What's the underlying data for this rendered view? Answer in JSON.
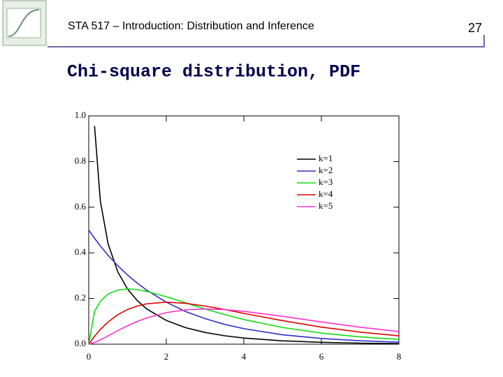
{
  "header": {
    "title": "STA 517 – Introduction: Distribution and Inference",
    "page": "27"
  },
  "chart_data": {
    "type": "line",
    "title": "Chi-square distribution, PDF",
    "x": [
      0,
      0.15,
      0.3,
      0.5,
      0.75,
      1,
      1.25,
      1.5,
      2,
      2.5,
      3,
      3.5,
      4,
      5,
      6,
      7,
      8
    ],
    "series": [
      {
        "name": "k=1",
        "color": "#000000",
        "values": [
          null,
          0.956,
          0.627,
          0.439,
          0.317,
          0.242,
          0.191,
          0.154,
          0.104,
          0.0723,
          0.0514,
          0.0371,
          0.027,
          0.0146,
          0.0081,
          0.0046,
          0.0026
        ]
      },
      {
        "name": "k=2",
        "color": "#2f2fc8",
        "values": [
          0.5,
          0.464,
          0.43,
          0.389,
          0.344,
          0.303,
          0.268,
          0.236,
          0.184,
          0.143,
          0.112,
          0.087,
          0.068,
          0.041,
          0.025,
          0.015,
          0.009
        ]
      },
      {
        "name": "k=3",
        "color": "#10dd10",
        "values": [
          0,
          0.143,
          0.188,
          0.22,
          0.237,
          0.242,
          0.239,
          0.231,
          0.208,
          0.181,
          0.154,
          0.13,
          0.108,
          0.073,
          0.0487,
          0.0319,
          0.0207
        ]
      },
      {
        "name": "k=4",
        "color": "#e00000",
        "values": [
          0,
          0.0348,
          0.0646,
          0.0974,
          0.129,
          0.152,
          0.167,
          0.177,
          0.184,
          0.179,
          0.167,
          0.152,
          0.135,
          0.103,
          0.0747,
          0.0529,
          0.0366
        ]
      },
      {
        "name": "k=5",
        "color": "#ff30d0",
        "values": [
          0,
          0.00717,
          0.0188,
          0.0366,
          0.0594,
          0.0807,
          0.0995,
          0.1154,
          0.1384,
          0.1506,
          0.1542,
          0.1514,
          0.144,
          0.1221,
          0.0973,
          0.0744,
          0.0551
        ]
      }
    ],
    "xlim": [
      0,
      8
    ],
    "ylim": [
      0,
      1
    ],
    "xticks": [
      0,
      2,
      4,
      6,
      8
    ],
    "yticks": [
      {
        "value": 0,
        "label": "0.0"
      },
      0.2,
      0.4,
      0.6,
      0.8,
      {
        "value": 1,
        "label": "1.0"
      }
    ],
    "legend": "upper right"
  }
}
